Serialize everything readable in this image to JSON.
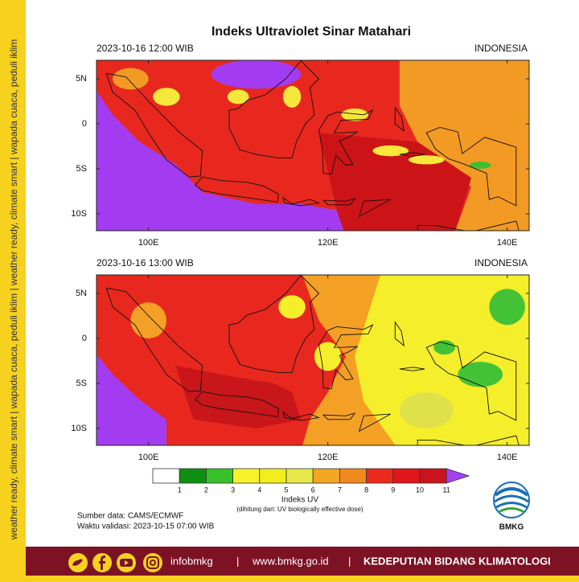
{
  "side_strip": "weather ready, climate smart | wapada cuaca, peduli iklim | weather ready, climate smart | wapada cuaca, peduli iklim",
  "title": "Indeks Ultraviolet Sinar Matahari",
  "panels": [
    {
      "time": "2023-10-16  12:00 WIB",
      "region": "INDONESIA",
      "lat_labels": [
        "5N",
        "0",
        "5S",
        "10S"
      ],
      "lon_labels": [
        "100E",
        "120E",
        "140E"
      ]
    },
    {
      "time": "2023-10-16  13:00 WIB",
      "region": "INDONESIA",
      "lat_labels": [
        "5N",
        "0",
        "5S",
        "10S"
      ],
      "lon_labels": [
        "100E",
        "120E",
        "140E"
      ]
    }
  ],
  "colorbar": {
    "labels": [
      "1",
      "2",
      "3",
      "4",
      "5",
      "6",
      "7",
      "8",
      "9",
      "10",
      "11"
    ],
    "colors": [
      "#ffffff",
      "#0f8f12",
      "#38c22a",
      "#f6f22a",
      "#f2ee1e",
      "#e6e84a",
      "#f3a623",
      "#f08a1c",
      "#ea2a1c",
      "#e0161a",
      "#c8141a"
    ],
    "over_color": "#a340f0",
    "title": "Indeks UV",
    "note": "(dihitung dari: UV biologically effective dose)"
  },
  "source": "Sumber data: CAMS/ECMWF",
  "validity": "Waktu validasi: 2023-10-15 07:00 WIB",
  "logo_text": "BMKG",
  "footer": {
    "handle": "infobmkg",
    "sep1": "|",
    "website": "www.bmkg.go.id",
    "sep2": "|",
    "department": "KEDEPUTIAN BIDANG KLIMATOLOGI"
  }
}
